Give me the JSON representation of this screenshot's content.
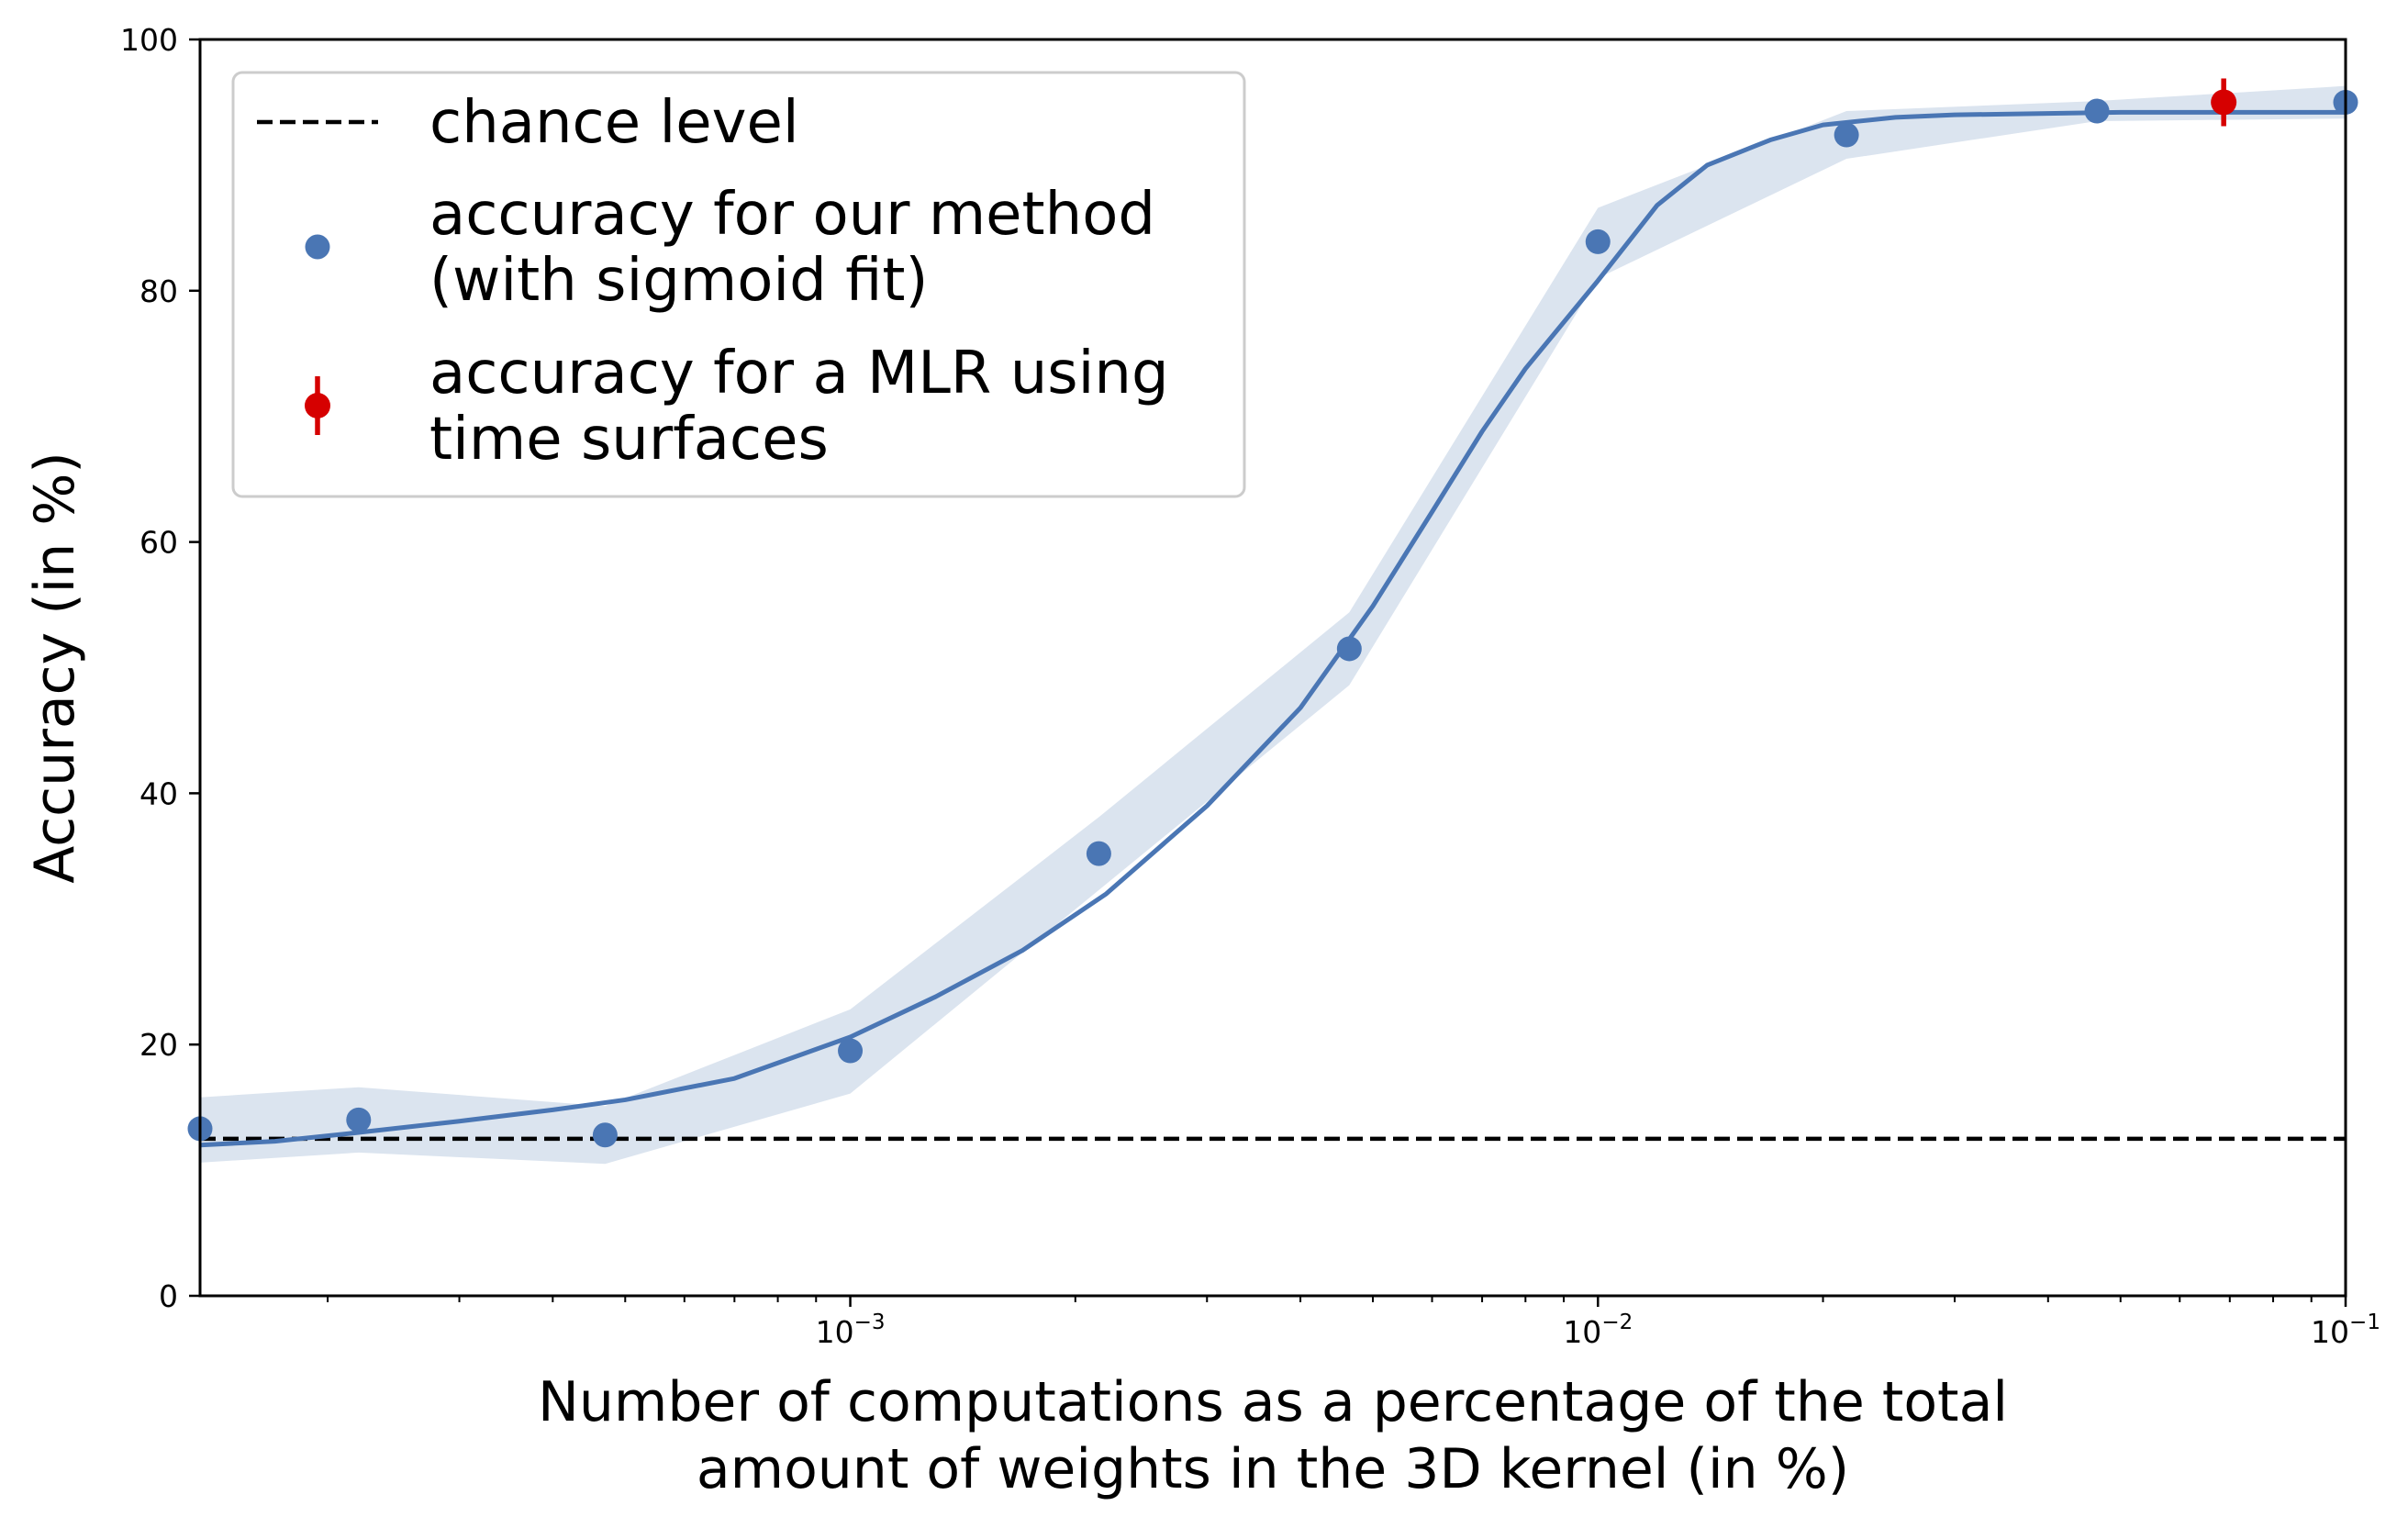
{
  "chart_data": {
    "type": "scatter",
    "xscale": "log",
    "xlim": [
      0.000135,
      0.1
    ],
    "ylim": [
      0,
      100
    ],
    "xlabel": [
      "Number of computations as a percentage of the total",
      "amount of weights in the 3D kernel (in %)"
    ],
    "ylabel": "Accuracy (in %)",
    "grid": false,
    "legend_position": "upper left",
    "x_ticks": [
      {
        "value": 0.001,
        "base": "10",
        "exp": "−3"
      },
      {
        "value": 0.01,
        "base": "10",
        "exp": "−2"
      },
      {
        "value": 0.1,
        "base": "10",
        "exp": "−1"
      }
    ],
    "y_ticks": [
      0,
      20,
      40,
      60,
      80,
      100
    ],
    "legend": [
      {
        "key": "chance",
        "lines": [
          "chance level"
        ]
      },
      {
        "key": "method",
        "lines": [
          "accuracy for our method",
          "(with sigmoid fit)"
        ]
      },
      {
        "key": "mlr",
        "lines": [
          "accuracy for a MLR using",
          "time surfaces"
        ]
      }
    ],
    "series": [
      {
        "name": "chance level",
        "kind": "hline",
        "y": 12.5,
        "color": "#000000",
        "style": "dashed"
      },
      {
        "name": "accuracy for our method (with sigmoid fit)",
        "kind": "points",
        "color": "#4a76b4",
        "points": [
          {
            "x": 0.000135,
            "y": 13.3
          },
          {
            "x": 0.00022,
            "y": 14.0
          },
          {
            "x": 0.00047,
            "y": 12.8
          },
          {
            "x": 0.001,
            "y": 19.5
          },
          {
            "x": 0.00215,
            "y": 35.2
          },
          {
            "x": 0.00465,
            "y": 51.5
          },
          {
            "x": 0.01,
            "y": 83.9
          },
          {
            "x": 0.0215,
            "y": 92.4
          },
          {
            "x": 0.0465,
            "y": 94.3
          },
          {
            "x": 0.1,
            "y": 95.0
          }
        ]
      },
      {
        "name": "sigmoid fit",
        "kind": "line",
        "color": "#4a76b4",
        "points": [
          {
            "x": 0.000135,
            "y": 12.0
          },
          {
            "x": 0.00017,
            "y": 12.3
          },
          {
            "x": 0.00022,
            "y": 13.0
          },
          {
            "x": 0.0003,
            "y": 13.9
          },
          {
            "x": 0.0004,
            "y": 14.8
          },
          {
            "x": 0.0005,
            "y": 15.6
          },
          {
            "x": 0.0007,
            "y": 17.3
          },
          {
            "x": 0.001,
            "y": 20.6
          },
          {
            "x": 0.0013,
            "y": 23.8
          },
          {
            "x": 0.0017,
            "y": 27.5
          },
          {
            "x": 0.0022,
            "y": 32.0
          },
          {
            "x": 0.003,
            "y": 39.0
          },
          {
            "x": 0.004,
            "y": 46.8
          },
          {
            "x": 0.005,
            "y": 54.9
          },
          {
            "x": 0.006,
            "y": 62.4
          },
          {
            "x": 0.007,
            "y": 68.8
          },
          {
            "x": 0.008,
            "y": 73.8
          },
          {
            "x": 0.01,
            "y": 80.8
          },
          {
            "x": 0.012,
            "y": 86.8
          },
          {
            "x": 0.014,
            "y": 90.0
          },
          {
            "x": 0.017,
            "y": 92.0
          },
          {
            "x": 0.02,
            "y": 93.2
          },
          {
            "x": 0.025,
            "y": 93.8
          },
          {
            "x": 0.03,
            "y": 94.0
          },
          {
            "x": 0.05,
            "y": 94.2
          },
          {
            "x": 0.1,
            "y": 94.2
          }
        ]
      },
      {
        "name": "confidence band",
        "kind": "band",
        "color": "#dbe4ef",
        "points": [
          {
            "x": 0.000135,
            "lo": 10.6,
            "hi": 15.8
          },
          {
            "x": 0.00022,
            "lo": 11.4,
            "hi": 16.6
          },
          {
            "x": 0.00047,
            "lo": 10.5,
            "hi": 15.1
          },
          {
            "x": 0.001,
            "lo": 16.1,
            "hi": 22.8
          },
          {
            "x": 0.00215,
            "lo": 32.3,
            "hi": 38.1
          },
          {
            "x": 0.00465,
            "lo": 48.6,
            "hi": 54.4
          },
          {
            "x": 0.01,
            "lo": 81.0,
            "hi": 86.6
          },
          {
            "x": 0.0215,
            "lo": 90.5,
            "hi": 94.3
          },
          {
            "x": 0.0465,
            "lo": 93.5,
            "hi": 95.1
          },
          {
            "x": 0.1,
            "lo": 93.7,
            "hi": 96.3
          }
        ]
      },
      {
        "name": "accuracy for a MLR using time surfaces",
        "kind": "errorbar",
        "color": "#d60000",
        "points": [
          {
            "x": 0.0687,
            "y": 95.0,
            "yerr": 1.9
          }
        ]
      }
    ]
  }
}
